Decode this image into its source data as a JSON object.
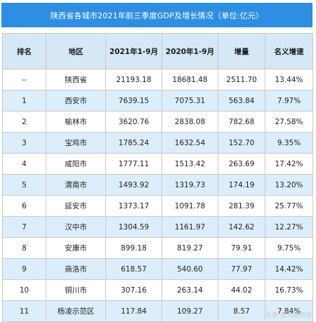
{
  "title": "陕西省各城市2021年前三季度GDP及增长情况（单位:亿元）",
  "table": {
    "headers": [
      "排名",
      "地区",
      "2021年1-9月",
      "2020年1-9月",
      "增量",
      "名义增速"
    ],
    "rows": [
      [
        "--",
        "陕西省",
        "21193.18",
        "18681.48",
        "2511.70",
        "13.44%"
      ],
      [
        "1",
        "西安市",
        "7639.15",
        "7075.31",
        "563.84",
        "7.97%"
      ],
      [
        "2",
        "榆林市",
        "3620.76",
        "2838.08",
        "782.68",
        "27.58%"
      ],
      [
        "3",
        "宝鸡市",
        "1785.24",
        "1632.54",
        "152.70",
        "9.35%"
      ],
      [
        "4",
        "咸阳市",
        "1777.11",
        "1513.42",
        "263.69",
        "17.42%"
      ],
      [
        "5",
        "渭南市",
        "1493.92",
        "1319.73",
        "174.19",
        "13.20%"
      ],
      [
        "6",
        "延安市",
        "1373.17",
        "1091.78",
        "281.39",
        "25.77%"
      ],
      [
        "7",
        "汉中市",
        "1304.59",
        "1161.97",
        "142.62",
        "12.27%"
      ],
      [
        "8",
        "安康市",
        "899.18",
        "819.27",
        "79.91",
        "9.75%"
      ],
      [
        "9",
        "商洛市",
        "618.57",
        "540.60",
        "77.97",
        "14.42%"
      ],
      [
        "10",
        "铜川市",
        "307.16",
        "263.14",
        "44.02",
        "16.73%"
      ],
      [
        "11",
        "杨凌示范区",
        "117.84",
        "109.27",
        "8.57",
        "7.84%"
      ]
    ]
  },
  "colors": {
    "title_bg": "#2e8fe2",
    "header_bg": "#d6e7f6",
    "stripe": "#dcedfb"
  },
  "watermark": "头条 @大话西安"
}
